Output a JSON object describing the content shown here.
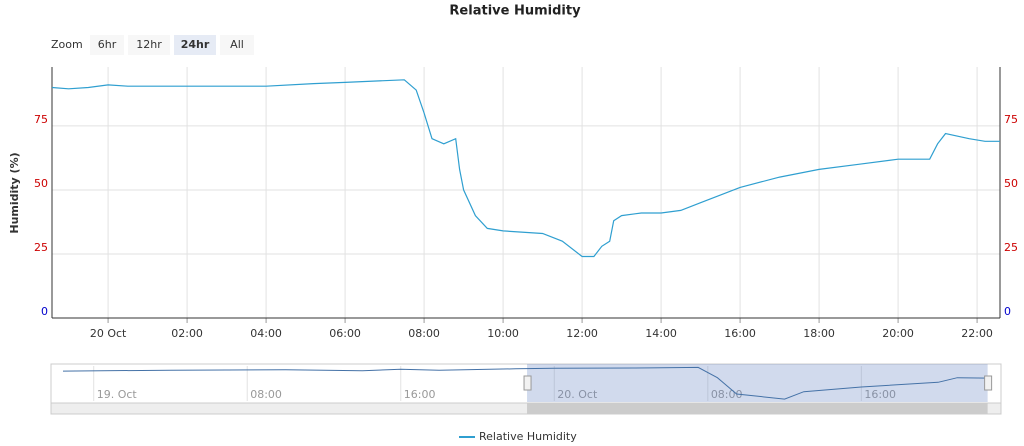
{
  "range_selector": {
    "label": "Zoom",
    "buttons": [
      "6hr",
      "12hr",
      "24hr",
      "All"
    ],
    "selected": 2
  },
  "chart_data": {
    "type": "line",
    "title": "Relative Humidity",
    "y_label": "Humidity (%)",
    "x": [
      -1.42,
      -1.0,
      -0.5,
      0,
      0.5,
      2,
      4,
      5.2,
      6,
      7.5,
      7.8,
      8.0,
      8.2,
      8.5,
      8.8,
      8.9,
      9.0,
      9.3,
      9.6,
      10,
      11,
      11.5,
      12,
      12.3,
      12.5,
      12.7,
      12.8,
      13,
      13.5,
      14,
      14.5,
      15,
      16,
      17,
      18,
      19,
      20,
      20.8,
      21.0,
      21.2,
      21.8,
      22.2,
      22.58
    ],
    "series": [
      {
        "name": "Relative Humidity",
        "color": "#2f9fd0",
        "values": [
          90,
          89.5,
          90,
          91,
          90.5,
          90.5,
          90.5,
          91.5,
          92,
          93,
          89,
          80,
          70,
          68,
          70,
          58,
          50,
          40,
          35,
          34,
          33,
          30,
          24,
          24,
          28,
          30,
          38,
          40,
          41,
          41,
          42,
          45,
          51,
          55,
          58,
          60,
          62,
          62,
          68,
          72,
          70,
          69,
          69
        ]
      }
    ],
    "xlim": [
      -1.42,
      22.58
    ],
    "xticks": [
      {
        "value": 0,
        "label": "20 Oct"
      },
      {
        "value": 2,
        "label": "02:00"
      },
      {
        "value": 4,
        "label": "04:00"
      },
      {
        "value": 6,
        "label": "06:00"
      },
      {
        "value": 8,
        "label": "08:00"
      },
      {
        "value": 10,
        "label": "10:00"
      },
      {
        "value": 12,
        "label": "12:00"
      },
      {
        "value": 14,
        "label": "14:00"
      },
      {
        "value": 16,
        "label": "16:00"
      },
      {
        "value": 18,
        "label": "18:00"
      },
      {
        "value": 20,
        "label": "20:00"
      },
      {
        "value": 22,
        "label": "22:00"
      }
    ],
    "ylim": [
      0,
      98
    ],
    "yticks": [
      0,
      25,
      50,
      75
    ],
    "grid": true,
    "legend": "bottom",
    "navigator": {
      "x": [
        -25.6,
        -20,
        -14,
        -10,
        -8,
        -6,
        -2,
        0,
        5,
        7.5,
        8.5,
        9.5,
        12,
        13,
        16,
        20,
        21,
        22.6
      ],
      "values": [
        84,
        86,
        87,
        85,
        88,
        86,
        89,
        90,
        91,
        92,
        70,
        35,
        24,
        40,
        50,
        60,
        70,
        69
      ],
      "xlim": [
        -25.6,
        22.6
      ],
      "ylim": [
        20,
        95
      ],
      "xticks": [
        {
          "value": -24,
          "label": "19. Oct"
        },
        {
          "value": -16,
          "label": "08:00"
        },
        {
          "value": -8,
          "label": "16:00"
        },
        {
          "value": 0,
          "label": "20. Oct"
        },
        {
          "value": 8,
          "label": "08:00"
        },
        {
          "value": 16,
          "label": "16:00"
        }
      ]
    }
  }
}
